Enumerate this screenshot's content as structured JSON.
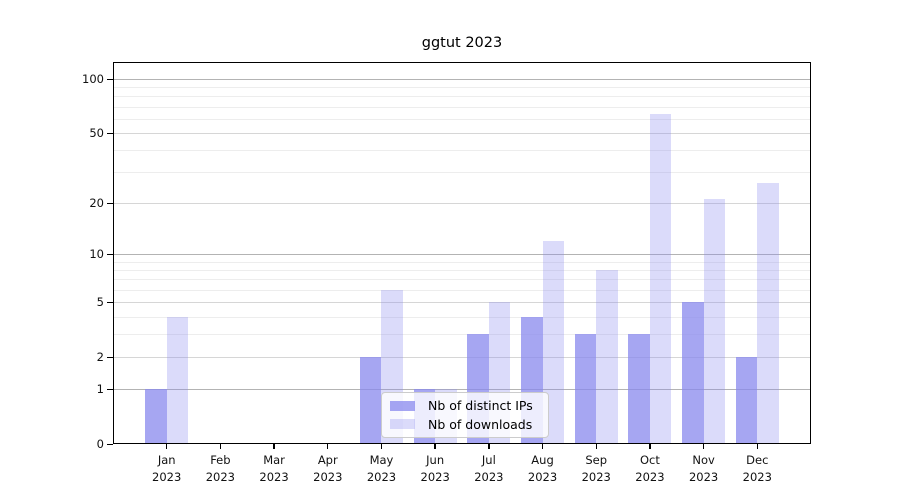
{
  "chart_data": {
    "type": "bar",
    "title": "ggtut 2023",
    "categories": [
      "Jan",
      "Feb",
      "Mar",
      "Apr",
      "May",
      "Jun",
      "Jul",
      "Aug",
      "Sep",
      "Oct",
      "Nov",
      "Dec"
    ],
    "category_year": "2023",
    "series": [
      {
        "name": "Nb of distinct IPs",
        "color": "#8888ee",
        "alpha": 0.75,
        "values": [
          1,
          0,
          0,
          0,
          2,
          1,
          3,
          4,
          3,
          3,
          5,
          2
        ]
      },
      {
        "name": "Nb of downloads",
        "color": "#8888ee",
        "alpha": 0.3,
        "values": [
          4,
          0,
          0,
          0,
          6,
          1,
          5,
          12,
          8,
          64,
          21,
          26
        ]
      }
    ],
    "y_scale": "log1p",
    "ylim": [
      0,
      124
    ],
    "y_major_ticks": [
      0,
      1,
      2,
      5,
      10,
      20,
      50,
      100
    ],
    "y_minor_gridlines": [
      3,
      4,
      6,
      7,
      8,
      9,
      30,
      40,
      60,
      70,
      80,
      90
    ],
    "grid": true,
    "legend_position": "lower center",
    "colors": {
      "decade_gridline": "#b3b3b3",
      "labeled_gridline": "#d6d6d6",
      "minor_gridline": "#ededed",
      "spine": "#000000",
      "legend_border": "#cccccc"
    }
  }
}
